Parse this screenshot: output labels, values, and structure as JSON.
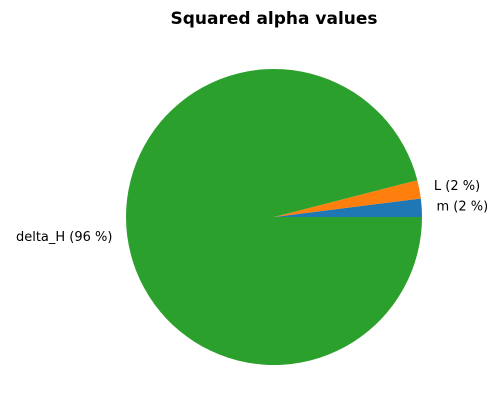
{
  "chart_data": {
    "type": "pie",
    "title": "Squared alpha values",
    "categories": [
      "m (2 %)",
      "L (2 %)",
      "delta_H (96 %)"
    ],
    "values": [
      2,
      2,
      96
    ],
    "colors": [
      "#1f77b4",
      "#ff7f0e",
      "#2ca02c"
    ]
  }
}
